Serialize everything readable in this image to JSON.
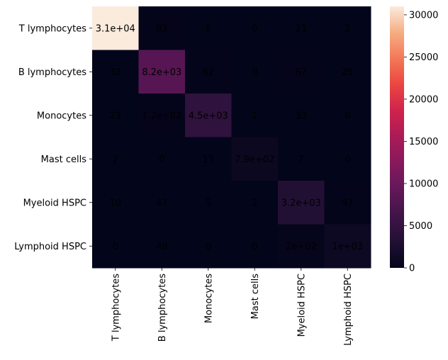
{
  "chart_data": {
    "type": "heatmap",
    "row_labels": [
      "T lymphocytes",
      "B lymphocytes",
      "Monocytes",
      "Mast cells",
      "Myeloid HSPC",
      "Lymphoid HSPC"
    ],
    "col_labels": [
      "T lymphocytes",
      "B lymphocytes",
      "Monocytes",
      "Mast cells",
      "Myeloid HSPC",
      "Lymphoid HSPC"
    ],
    "values": [
      [
        31000,
        93,
        8,
        0,
        21,
        2
      ],
      [
        32,
        8200,
        62,
        0,
        67,
        25
      ],
      [
        23,
        120,
        4500,
        1,
        33,
        0
      ],
      [
        2,
        0,
        15,
        790,
        7,
        0
      ],
      [
        10,
        47,
        5,
        2,
        3200,
        97
      ],
      [
        0,
        49,
        0,
        0,
        200,
        1000
      ]
    ],
    "cell_labels": [
      [
        "3.1e+04",
        "93",
        "8",
        "0",
        "21",
        "2"
      ],
      [
        "32",
        "8.2e+03",
        "62",
        "0",
        "67",
        "25"
      ],
      [
        "23",
        "1.2e+02",
        "4.5e+03",
        "1",
        "33",
        "0"
      ],
      [
        "2",
        "0",
        "15",
        "7.9e+02",
        "7",
        "0"
      ],
      [
        "10",
        "47",
        "5",
        "2",
        "3.2e+03",
        "97"
      ],
      [
        "0",
        "49",
        "0",
        "0",
        "2e+02",
        "1e+03"
      ]
    ],
    "colorbar": {
      "range": [
        0,
        31000
      ],
      "ticks": [
        0,
        5000,
        10000,
        15000,
        20000,
        25000,
        30000
      ],
      "tick_labels": [
        "0",
        "5000",
        "10000",
        "15000",
        "20000",
        "25000",
        "30000"
      ],
      "colormap": "rocket"
    },
    "title": "",
    "xlabel": "",
    "ylabel": ""
  }
}
